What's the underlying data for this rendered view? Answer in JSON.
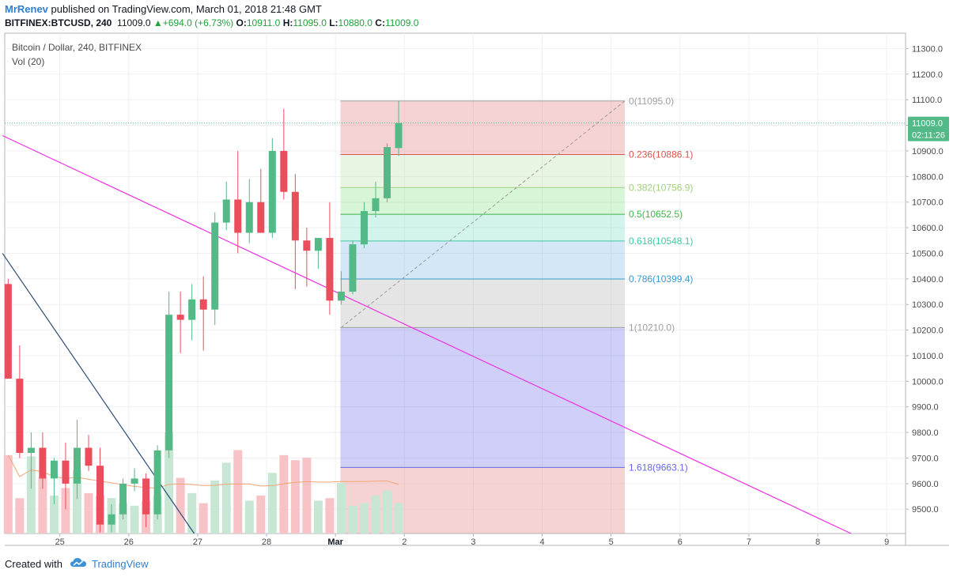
{
  "header": {
    "author": "MrRenev",
    "published": "published on TradingView.com, March 01, 2018 21:48 GMT",
    "symbol": "BITFINEX:BTCUSD, 240",
    "last": "11009.0",
    "change": "+694.0 (+6.73%)",
    "o_label": "O:",
    "o_value": "10911.0",
    "h_label": "H:",
    "h_value": "11095.0",
    "l_label": "L:",
    "l_value": "10880.0",
    "c_label": "C:",
    "c_value": "11009.0"
  },
  "legend": {
    "title": "Bitcoin / Dollar, 240, BITFINEX",
    "volume": "Vol (20)"
  },
  "footer": {
    "created": "Created with",
    "brand": "TradingView"
  },
  "price_label": {
    "value": "11009.0",
    "countdown": "02:11:26"
  },
  "colors": {
    "up": "#53b987",
    "down": "#eb4d5c",
    "vol_up": "#c7e7d4",
    "vol_down": "#f7c3c7",
    "trendline": "#ee2fe5",
    "trendline2": "#2b4d75",
    "ma": "#f0a573"
  },
  "chart_data": {
    "type": "candlestick",
    "title": "Bitcoin / Dollar, 240, BITFINEX",
    "x_tick_labels": [
      "25",
      "26",
      "27",
      "28",
      "Mar",
      "2",
      "3",
      "4",
      "5",
      "6",
      "7",
      "8",
      "9"
    ],
    "y_tick_labels": [
      "9500.0",
      "9600.0",
      "9700.0",
      "9800.0",
      "9900.0",
      "10000.0",
      "10100.0",
      "10200.0",
      "10300.0",
      "10400.0",
      "10500.0",
      "10600.0",
      "10700.0",
      "10800.0",
      "10900.0",
      "11000.0",
      "11100.0",
      "11200.0",
      "11300.0"
    ],
    "ylim": [
      9405,
      11360
    ],
    "candles": [
      {
        "t": 0,
        "o": 10380,
        "h": 10400,
        "l": 10020,
        "c": 10010
      },
      {
        "t": 1,
        "o": 10010,
        "h": 10140,
        "l": 9700,
        "c": 9720
      },
      {
        "t": 2,
        "o": 9720,
        "h": 9800,
        "l": 9580,
        "c": 9740
      },
      {
        "t": 3,
        "o": 9740,
        "h": 9800,
        "l": 9580,
        "c": 9620
      },
      {
        "t": 4,
        "o": 9620,
        "h": 9700,
        "l": 9520,
        "c": 9690
      },
      {
        "t": 5,
        "o": 9690,
        "h": 9760,
        "l": 9500,
        "c": 9600
      },
      {
        "t": 6,
        "o": 9600,
        "h": 9850,
        "l": 9540,
        "c": 9740
      },
      {
        "t": 7,
        "o": 9740,
        "h": 9790,
        "l": 9650,
        "c": 9670
      },
      {
        "t": 8,
        "o": 9670,
        "h": 9740,
        "l": 9410,
        "c": 9440
      },
      {
        "t": 9,
        "o": 9440,
        "h": 9520,
        "l": 9410,
        "c": 9480
      },
      {
        "t": 10,
        "o": 9480,
        "h": 9620,
        "l": 9460,
        "c": 9600
      },
      {
        "t": 11,
        "o": 9600,
        "h": 9660,
        "l": 9570,
        "c": 9620
      },
      {
        "t": 12,
        "o": 9620,
        "h": 9640,
        "l": 9430,
        "c": 9480
      },
      {
        "t": 13,
        "o": 9480,
        "h": 9750,
        "l": 9460,
        "c": 9730
      },
      {
        "t": 14,
        "o": 9730,
        "h": 10350,
        "l": 9700,
        "c": 10260
      },
      {
        "t": 15,
        "o": 10260,
        "h": 10350,
        "l": 10110,
        "c": 10240
      },
      {
        "t": 16,
        "o": 10240,
        "h": 10380,
        "l": 10160,
        "c": 10320
      },
      {
        "t": 17,
        "o": 10320,
        "h": 10410,
        "l": 10120,
        "c": 10280
      },
      {
        "t": 18,
        "o": 10280,
        "h": 10660,
        "l": 10220,
        "c": 10620
      },
      {
        "t": 19,
        "o": 10620,
        "h": 10780,
        "l": 10590,
        "c": 10710
      },
      {
        "t": 20,
        "o": 10710,
        "h": 10900,
        "l": 10500,
        "c": 10580
      },
      {
        "t": 21,
        "o": 10580,
        "h": 10790,
        "l": 10540,
        "c": 10700
      },
      {
        "t": 22,
        "o": 10700,
        "h": 10830,
        "l": 10580,
        "c": 10580
      },
      {
        "t": 23,
        "o": 10580,
        "h": 10950,
        "l": 10560,
        "c": 10900
      },
      {
        "t": 24,
        "o": 10900,
        "h": 11065,
        "l": 10710,
        "c": 10740
      },
      {
        "t": 25,
        "o": 10740,
        "h": 10810,
        "l": 10360,
        "c": 10550
      },
      {
        "t": 26,
        "o": 10550,
        "h": 10600,
        "l": 10370,
        "c": 10510
      },
      {
        "t": 27,
        "o": 10510,
        "h": 10560,
        "l": 10440,
        "c": 10560
      },
      {
        "t": 28,
        "o": 10560,
        "h": 10700,
        "l": 10260,
        "c": 10315
      },
      {
        "t": 29,
        "o": 10315,
        "h": 10430,
        "l": 10300,
        "c": 10350
      },
      {
        "t": 30,
        "o": 10350,
        "h": 10550,
        "l": 10340,
        "c": 10535
      },
      {
        "t": 31,
        "o": 10535,
        "h": 10700,
        "l": 10520,
        "c": 10665
      },
      {
        "t": 32,
        "o": 10665,
        "h": 10780,
        "l": 10640,
        "c": 10715
      },
      {
        "t": 33,
        "o": 10715,
        "h": 10930,
        "l": 10700,
        "c": 10915
      },
      {
        "t": 34,
        "o": 10911,
        "h": 11095,
        "l": 10880,
        "c": 11009
      }
    ],
    "volume": [
      62,
      28,
      61,
      44,
      30,
      36,
      50,
      32,
      30,
      28,
      24,
      22,
      26,
      30,
      80,
      44,
      32,
      24,
      42,
      56,
      66,
      26,
      30,
      48,
      62,
      58,
      60,
      26,
      28,
      40,
      22,
      24,
      30,
      34,
      24
    ],
    "trendlines": [
      {
        "name": "descending-trendline",
        "from": {
          "t": -0.5,
          "price": 10960
        },
        "to": {
          "t": 73.4,
          "price": 9405
        }
      },
      {
        "name": "steep-trendline",
        "from": {
          "t": -0.5,
          "price": 10500
        },
        "to": {
          "t": 16.2,
          "price": 9405
        }
      }
    ],
    "fib_retracement": {
      "start": {
        "t": 29,
        "price": 10210.0
      },
      "end": {
        "t": 34,
        "price": 11095.0
      },
      "levels": [
        {
          "ratio": "0",
          "price": 11095.0,
          "label": "0(11095.0)",
          "color": "#9e9e9e"
        },
        {
          "ratio": "0.236",
          "price": 10886.1,
          "label": "0.236(10886.1)",
          "color": "#d9534f"
        },
        {
          "ratio": "0.382",
          "price": 10756.9,
          "label": "0.382(10756.9)",
          "color": "#a0cf7e"
        },
        {
          "ratio": "0.5",
          "price": 10652.5,
          "label": "0.5(10652.5)",
          "color": "#3fb54a"
        },
        {
          "ratio": "0.618",
          "price": 10548.1,
          "label": "0.618(10548.1)",
          "color": "#3ec9a6"
        },
        {
          "ratio": "0.786",
          "price": 10399.4,
          "label": "0.786(10399.4)",
          "color": "#3a9bd0"
        },
        {
          "ratio": "1",
          "price": 10210.0,
          "label": "1(10210.0)",
          "color": "#9e9e9e"
        },
        {
          "ratio": "1.618",
          "price": 9663.1,
          "label": "1.618(9663.1)",
          "color": "#6667e6"
        }
      ]
    }
  }
}
